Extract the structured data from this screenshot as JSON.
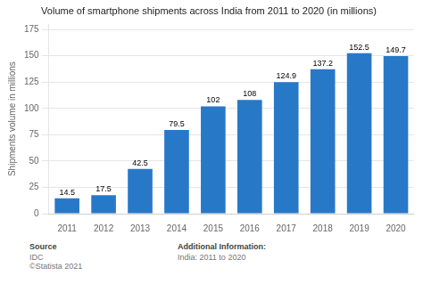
{
  "chart_data": {
    "type": "bar",
    "title": "Volume of smartphone shipments across India from 2011 to 2020 (in millions)",
    "categories": [
      "2011",
      "2012",
      "2013",
      "2014",
      "2015",
      "2016",
      "2017",
      "2018",
      "2019",
      "2020"
    ],
    "values": [
      14.5,
      17.5,
      42.5,
      79.5,
      102,
      108,
      124.9,
      137.2,
      152.5,
      149.7
    ],
    "color": "#2878C8",
    "ylabel": "Shipments volume in millions",
    "ylim": [
      0,
      180
    ],
    "yticks": [
      0,
      25,
      50,
      75,
      100,
      125,
      150,
      175
    ],
    "grid": true,
    "data_labels": true,
    "annotations": [
      {
        "label": "Source",
        "text": "IDC\n©Statista 2021"
      },
      {
        "label": "Additional Information:",
        "text": "India: 2011 to 2020"
      }
    ]
  }
}
